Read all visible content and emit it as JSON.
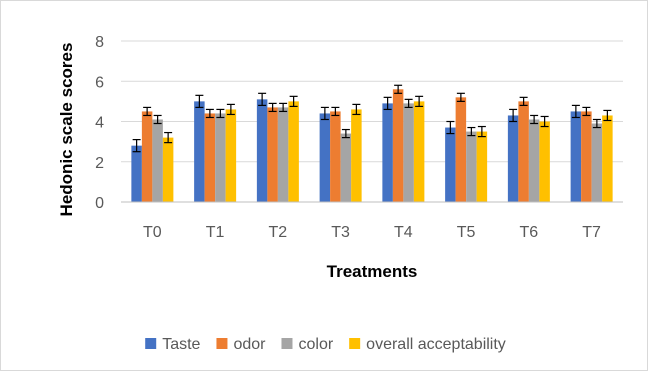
{
  "chart_data": {
    "type": "bar",
    "title": "",
    "xlabel": "Treatments",
    "ylabel": "Hedonic scale scores",
    "ylim": [
      0,
      8
    ],
    "yticks": [
      0,
      2,
      4,
      6,
      8
    ],
    "grid": true,
    "legend_position": "bottom",
    "categories": [
      "T0",
      "T1",
      "T2",
      "T3",
      "T4",
      "T5",
      "T6",
      "T7"
    ],
    "series": [
      {
        "name": "Taste",
        "color": "#4472C4",
        "values": [
          2.8,
          5.0,
          5.1,
          4.4,
          4.9,
          3.7,
          4.3,
          4.5
        ],
        "errors": [
          0.3,
          0.3,
          0.3,
          0.3,
          0.3,
          0.3,
          0.3,
          0.3
        ]
      },
      {
        "name": "odor",
        "color": "#ED7D31",
        "values": [
          4.5,
          4.4,
          4.7,
          4.5,
          5.6,
          5.2,
          5.0,
          4.5
        ],
        "errors": [
          0.2,
          0.2,
          0.2,
          0.2,
          0.2,
          0.2,
          0.2,
          0.2
        ]
      },
      {
        "name": "color",
        "color": "#A5A5A5",
        "values": [
          4.1,
          4.4,
          4.7,
          3.4,
          4.9,
          3.5,
          4.1,
          3.9
        ],
        "errors": [
          0.2,
          0.2,
          0.2,
          0.2,
          0.2,
          0.2,
          0.2,
          0.2
        ]
      },
      {
        "name": "overall acceptability",
        "color": "#FFC000",
        "values": [
          3.2,
          4.6,
          5.0,
          4.6,
          5.0,
          3.5,
          4.0,
          4.3
        ],
        "errors": [
          0.25,
          0.25,
          0.25,
          0.25,
          0.25,
          0.25,
          0.25,
          0.25
        ]
      }
    ]
  }
}
